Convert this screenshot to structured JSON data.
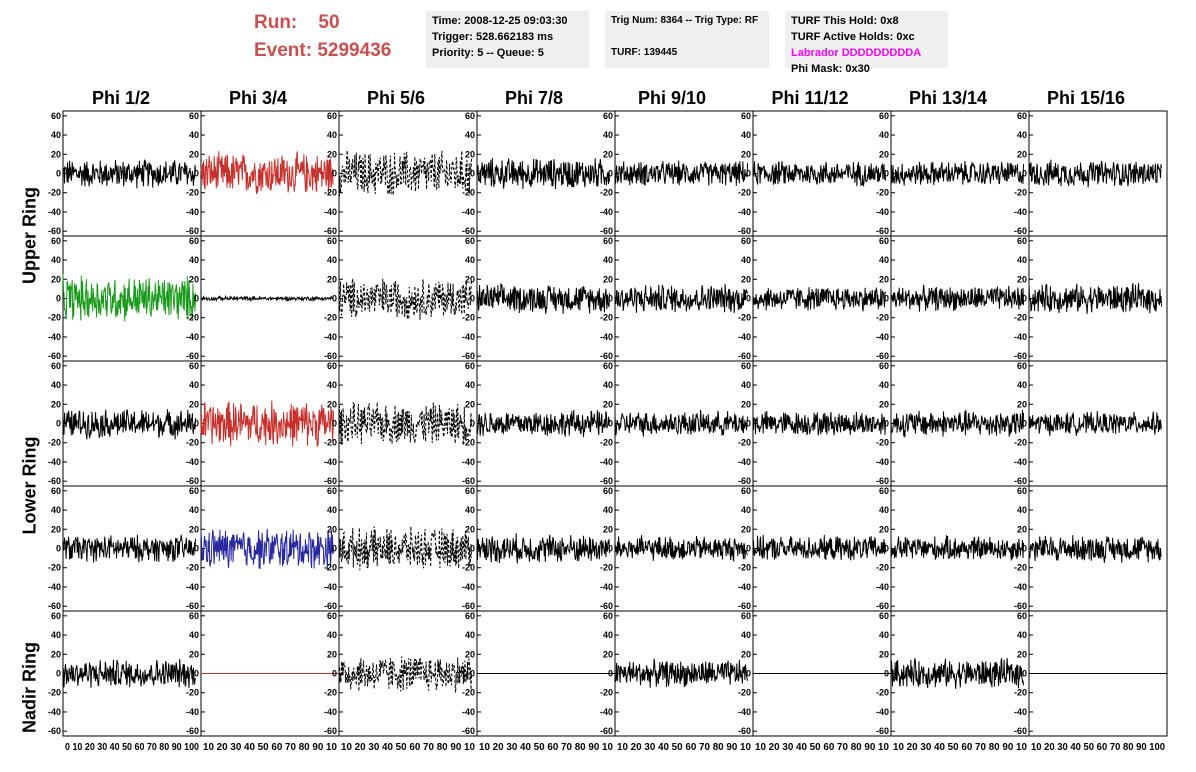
{
  "header": {
    "run_label": "Run:    50",
    "event_label": "Event: 5299436",
    "time": "Time: 2008-12-25 09:03:30",
    "trigger": "Trigger: 528.662183 ms",
    "priority": "Priority: 5 -- Queue: 5",
    "trig_num": "Trig Num: 8364 -- Trig Type: RF",
    "turf": "TURF: 139445",
    "turf_this_hold": "TURF This Hold: 0x8",
    "turf_active_holds": "TURF Active Holds: 0xc",
    "labrador": "Labrador DDDDDDDDDA",
    "phi_mask": "Phi Mask: 0x30"
  },
  "colors": {
    "header_red": "#c8504f",
    "labrador_magenta": "#ff00ff",
    "info_box_bg": "#efefef",
    "trace_default": "#000000",
    "trace_red": "#c8302c",
    "trace_green": "#1a9a1a",
    "trace_blue": "#2828a0"
  },
  "columns": [
    "Phi 1/2",
    "Phi 3/4",
    "Phi 5/6",
    "Phi 7/8",
    "Phi 9/10",
    "Phi 11/12",
    "Phi 13/14",
    "Phi 15/16"
  ],
  "rings": [
    "Upper Ring",
    "Lower Ring",
    "Nadir Ring"
  ],
  "chart_data": {
    "type": "line",
    "description_note": "",
    "yticks": [
      -60,
      -40,
      -20,
      0,
      20,
      40,
      60
    ],
    "ylim": [
      -65,
      65
    ],
    "xticks": [
      0,
      10,
      20,
      30,
      40,
      50,
      60,
      70,
      80,
      90,
      100
    ],
    "xtick_labels_first_panel": "0 10 20 30 40 50 60 70 80 90 100",
    "xtick_labels_inner_panel": "10 20 30 40 50 60 70 80 90 10",
    "xtick_labels_last_panel": "10 20 30 40 50 60 70 80 90 100",
    "xlim": [
      0,
      100
    ],
    "panels": [
      [
        {
          "color": "black",
          "style": "solid",
          "amp": 14
        },
        {
          "color": "red",
          "style": "solid",
          "amp": 20
        },
        {
          "color": "black",
          "style": "dashed",
          "amp": 22
        },
        {
          "color": "black",
          "style": "solid",
          "amp": 15
        },
        {
          "color": "black",
          "style": "solid",
          "amp": 12
        },
        {
          "color": "black",
          "style": "solid",
          "amp": 12
        },
        {
          "color": "black",
          "style": "solid",
          "amp": 12
        },
        {
          "color": "black",
          "style": "solid",
          "amp": 13
        }
      ],
      [
        {
          "color": "green",
          "style": "solid",
          "amp": 22
        },
        {
          "color": "black",
          "style": "solid",
          "amp": 2
        },
        {
          "color": "black",
          "style": "dashed",
          "amp": 20
        },
        {
          "color": "black",
          "style": "solid",
          "amp": 14
        },
        {
          "color": "black",
          "style": "solid",
          "amp": 14
        },
        {
          "color": "black",
          "style": "solid",
          "amp": 12
        },
        {
          "color": "black",
          "style": "solid",
          "amp": 12
        },
        {
          "color": "black",
          "style": "solid",
          "amp": 14
        }
      ],
      [
        {
          "color": "black",
          "style": "solid",
          "amp": 14
        },
        {
          "color": "red",
          "style": "solid",
          "amp": 22
        },
        {
          "color": "black",
          "style": "dashed",
          "amp": 20
        },
        {
          "color": "black",
          "style": "solid",
          "amp": 13
        },
        {
          "color": "black",
          "style": "solid",
          "amp": 12
        },
        {
          "color": "black",
          "style": "solid",
          "amp": 12
        },
        {
          "color": "black",
          "style": "solid",
          "amp": 13
        },
        {
          "color": "black",
          "style": "solid",
          "amp": 11
        }
      ],
      [
        {
          "color": "black",
          "style": "solid",
          "amp": 13
        },
        {
          "color": "blue",
          "style": "solid",
          "amp": 20
        },
        {
          "color": "black",
          "style": "dashed",
          "amp": 20
        },
        {
          "color": "black",
          "style": "solid",
          "amp": 14
        },
        {
          "color": "black",
          "style": "solid",
          "amp": 12
        },
        {
          "color": "black",
          "style": "solid",
          "amp": 12
        },
        {
          "color": "black",
          "style": "solid",
          "amp": 12
        },
        {
          "color": "black",
          "style": "solid",
          "amp": 13
        }
      ],
      [
        {
          "color": "black",
          "style": "solid",
          "amp": 14
        },
        {
          "color": "red",
          "style": "flat",
          "amp": 0
        },
        {
          "color": "black",
          "style": "dashed",
          "amp": 18
        },
        {
          "color": "black",
          "style": "flat",
          "amp": 0
        },
        {
          "color": "black",
          "style": "solid",
          "amp": 13
        },
        {
          "color": "black",
          "style": "flat",
          "amp": 0
        },
        {
          "color": "black",
          "style": "solid",
          "amp": 14
        },
        {
          "color": "black",
          "style": "flat",
          "amp": 0
        }
      ]
    ]
  }
}
